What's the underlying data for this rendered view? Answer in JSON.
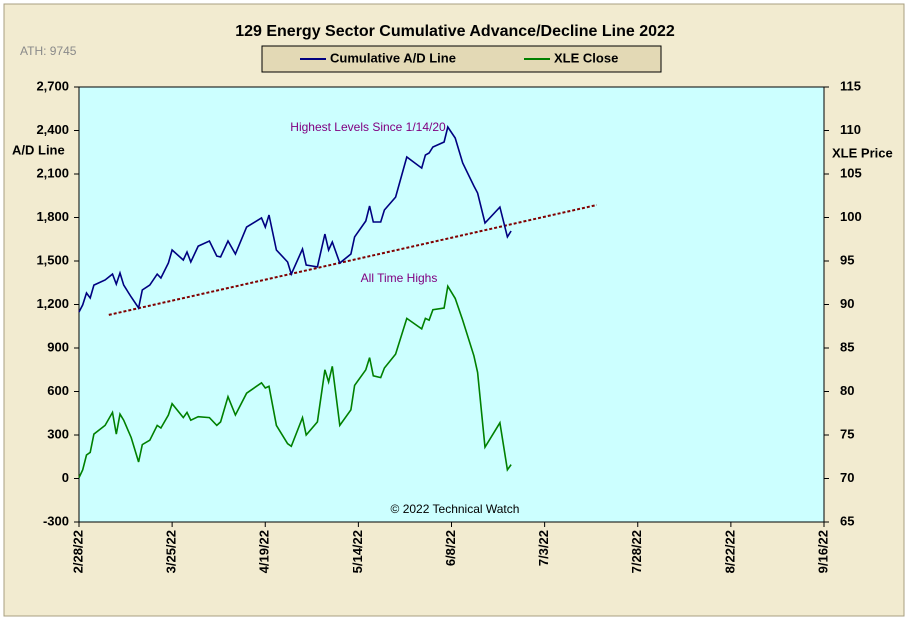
{
  "chart_data": {
    "type": "line",
    "title": "129 Energy Sector Cumulative Advance/Decline Line 2022",
    "subtitle": "ATH: 9745",
    "ylabel": "A/D Line",
    "y2label": "XLE Price",
    "annotations": [
      "Highest Levels Since 1/14/20",
      "All Time Highs"
    ],
    "credit": "© 2022 Technical Watch",
    "xlim": [
      "2022-02-28",
      "2022-09-16"
    ],
    "xticks": [
      {
        "value": "2022-02-28",
        "label": "2/28/22"
      },
      {
        "value": "2022-03-25",
        "label": "3/25/22"
      },
      {
        "value": "2022-04-19",
        "label": "4/19/22"
      },
      {
        "value": "2022-05-14",
        "label": "5/14/22"
      },
      {
        "value": "2022-06-08",
        "label": "6/8/22"
      },
      {
        "value": "2022-07-03",
        "label": "7/3/22"
      },
      {
        "value": "2022-07-28",
        "label": "7/28/22"
      },
      {
        "value": "2022-08-22",
        "label": "8/22/22"
      },
      {
        "value": "2022-09-16",
        "label": "9/16/22"
      }
    ],
    "ylim": [
      -300,
      2700
    ],
    "yticks": [
      -300,
      0,
      300,
      600,
      900,
      {
        "value": 1200,
        "label": "1,200"
      },
      {
        "value": 1500,
        "label": "1,500"
      },
      {
        "value": 1800,
        "label": "1,800"
      },
      {
        "value": 2100,
        "label": "2,100"
      },
      {
        "value": 2400,
        "label": "2,400"
      },
      {
        "value": 2700,
        "label": "2,700"
      }
    ],
    "y2lim": [
      65,
      115
    ],
    "y2ticks": [
      65,
      70,
      75,
      80,
      85,
      90,
      95,
      100,
      105,
      110,
      115
    ],
    "x": [
      "2022-02-28",
      "2022-03-01",
      "2022-03-02",
      "2022-03-03",
      "2022-03-04",
      "2022-03-07",
      "2022-03-09",
      "2022-03-10",
      "2022-03-11",
      "2022-03-12",
      "2022-03-14",
      "2022-03-16",
      "2022-03-17",
      "2022-03-19",
      "2022-03-21",
      "2022-03-22",
      "2022-03-24",
      "2022-03-25",
      "2022-03-28",
      "2022-03-29",
      "2022-03-30",
      "2022-04-01",
      "2022-04-04",
      "2022-04-06",
      "2022-04-07",
      "2022-04-09",
      "2022-04-11",
      "2022-04-14",
      "2022-04-18",
      "2022-04-19",
      "2022-04-20",
      "2022-04-22",
      "2022-04-25",
      "2022-04-26",
      "2022-04-29",
      "2022-04-30",
      "2022-05-03",
      "2022-05-05",
      "2022-05-06",
      "2022-05-07",
      "2022-05-09",
      "2022-05-12",
      "2022-05-13",
      "2022-05-16",
      "2022-05-17",
      "2022-05-18",
      "2022-05-20",
      "2022-05-21",
      "2022-05-24",
      "2022-05-27",
      "2022-05-31",
      "2022-06-01",
      "2022-06-02",
      "2022-06-03",
      "2022-06-06",
      "2022-06-07",
      "2022-06-09",
      "2022-06-11",
      "2022-06-14",
      "2022-06-15",
      "2022-06-17",
      "2022-06-21",
      "2022-06-23",
      "2022-06-24"
    ],
    "series": [
      {
        "name": "Cumulative A/D Line",
        "color": "#000080",
        "values": [
          1148,
          1197,
          1279,
          1245,
          1334,
          1369,
          1410,
          1341,
          1417,
          1334,
          1252,
          1176,
          1300,
          1334,
          1410,
          1383,
          1486,
          1576,
          1507,
          1562,
          1493,
          1603,
          1638,
          1534,
          1528,
          1638,
          1548,
          1734,
          1797,
          1734,
          1817,
          1576,
          1493,
          1410,
          1583,
          1472,
          1459,
          1686,
          1576,
          1631,
          1486,
          1548,
          1666,
          1776,
          1879,
          1769,
          1769,
          1852,
          1941,
          2217,
          2141,
          2231,
          2245,
          2286,
          2321,
          2424,
          2348,
          2176,
          2017,
          1969,
          1762,
          1872,
          1666,
          1707
        ]
      },
      {
        "name": "XLE Close",
        "color": "#008000",
        "axis": "y2",
        "values": [
          70.1,
          71.0,
          72.7,
          73.0,
          75.1,
          76.1,
          77.6,
          75.1,
          77.4,
          76.7,
          74.7,
          71.9,
          73.9,
          74.4,
          76.1,
          75.8,
          77.3,
          78.6,
          77.0,
          77.6,
          76.7,
          77.1,
          77.0,
          76.1,
          76.5,
          79.4,
          77.3,
          79.8,
          81.0,
          80.4,
          80.6,
          76.1,
          74.0,
          73.7,
          77.0,
          75.0,
          76.5,
          82.5,
          81.1,
          82.9,
          76.1,
          77.9,
          80.7,
          82.5,
          83.9,
          81.8,
          81.6,
          82.7,
          84.3,
          88.4,
          87.2,
          88.4,
          88.2,
          89.4,
          89.6,
          92.1,
          90.7,
          88.2,
          84.1,
          82.2,
          73.6,
          76.4,
          71.0,
          71.6
        ]
      }
    ],
    "trendline": {
      "x": [
        "2022-03-08",
        "2022-07-17"
      ],
      "values": [
        1128,
        1886
      ],
      "color": "#800000"
    }
  }
}
